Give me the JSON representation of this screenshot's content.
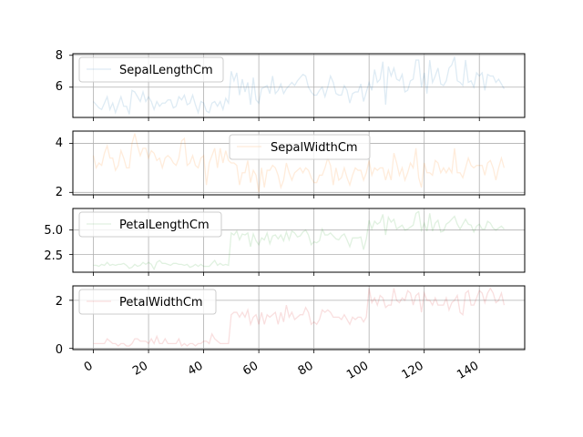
{
  "chart_data": [
    {
      "type": "line",
      "series": [
        {
          "name": "SepalLengthCm",
          "color": "#1f77b4"
        }
      ],
      "x": [
        0,
        1,
        2,
        3,
        4,
        5,
        6,
        7,
        8,
        9,
        10,
        11,
        12,
        13,
        14,
        15,
        16,
        17,
        18,
        19,
        20,
        21,
        22,
        23,
        24,
        25,
        26,
        27,
        28,
        29,
        30,
        31,
        32,
        33,
        34,
        35,
        36,
        37,
        38,
        39,
        40,
        41,
        42,
        43,
        44,
        45,
        46,
        47,
        48,
        49,
        50,
        51,
        52,
        53,
        54,
        55,
        56,
        57,
        58,
        59,
        60,
        61,
        62,
        63,
        64,
        65,
        66,
        67,
        68,
        69,
        70,
        71,
        72,
        73,
        74,
        75,
        76,
        77,
        78,
        79,
        80,
        81,
        82,
        83,
        84,
        85,
        86,
        87,
        88,
        89,
        90,
        91,
        92,
        93,
        94,
        95,
        96,
        97,
        98,
        99,
        100,
        101,
        102,
        103,
        104,
        105,
        106,
        107,
        108,
        109,
        110,
        111,
        112,
        113,
        114,
        115,
        116,
        117,
        118,
        119,
        120,
        121,
        122,
        123,
        124,
        125,
        126,
        127,
        128,
        129,
        130,
        131,
        132,
        133,
        134,
        135,
        136,
        137,
        138,
        139,
        140,
        141,
        142,
        143,
        144,
        145,
        146,
        147,
        148,
        149
      ],
      "values": [
        5.1,
        4.9,
        4.7,
        4.6,
        5.0,
        5.4,
        4.6,
        5.0,
        4.4,
        4.9,
        5.4,
        4.8,
        4.8,
        4.3,
        5.8,
        5.7,
        5.4,
        5.1,
        5.7,
        5.1,
        5.4,
        5.1,
        4.6,
        5.1,
        4.8,
        5.0,
        5.0,
        5.2,
        5.2,
        4.7,
        4.8,
        5.4,
        5.2,
        5.5,
        4.9,
        5.0,
        5.5,
        4.9,
        4.4,
        5.1,
        5.0,
        4.5,
        4.4,
        5.0,
        5.1,
        4.8,
        5.1,
        4.6,
        5.3,
        5.0,
        7.0,
        6.4,
        6.9,
        5.5,
        6.5,
        5.7,
        6.3,
        4.9,
        6.6,
        5.2,
        5.0,
        5.9,
        6.0,
        6.1,
        5.6,
        6.7,
        5.6,
        5.8,
        6.2,
        5.6,
        5.9,
        6.1,
        6.3,
        6.1,
        6.4,
        6.6,
        6.8,
        6.7,
        6.0,
        5.7,
        5.5,
        5.5,
        5.8,
        6.0,
        5.4,
        6.0,
        6.7,
        6.3,
        5.6,
        5.5,
        5.5,
        6.1,
        5.8,
        5.0,
        5.6,
        5.7,
        5.7,
        6.2,
        5.1,
        5.7,
        6.3,
        5.8,
        7.1,
        6.3,
        6.5,
        7.6,
        4.9,
        7.3,
        6.7,
        7.2,
        6.5,
        6.4,
        6.8,
        5.7,
        5.8,
        6.4,
        6.5,
        7.7,
        7.7,
        6.0,
        6.9,
        5.6,
        7.7,
        6.3,
        6.7,
        7.2,
        6.2,
        6.1,
        6.4,
        7.2,
        7.4,
        7.9,
        6.4,
        6.3,
        6.1,
        7.7,
        6.3,
        6.4,
        6.0,
        6.9,
        6.7,
        6.9,
        5.8,
        6.8,
        6.7,
        6.7,
        6.3,
        6.5,
        6.2,
        5.9
      ],
      "yticks": [
        "6",
        "8"
      ],
      "ylim": [
        4.1,
        8.1
      ]
    },
    {
      "type": "line",
      "series": [
        {
          "name": "SepalWidthCm",
          "color": "#ff7f0e"
        }
      ],
      "values": [
        3.5,
        3.0,
        3.2,
        3.1,
        3.6,
        3.9,
        3.4,
        3.4,
        2.9,
        3.1,
        3.7,
        3.4,
        3.0,
        3.0,
        4.0,
        4.4,
        3.9,
        3.5,
        3.8,
        3.8,
        3.4,
        3.7,
        3.6,
        3.3,
        3.4,
        3.0,
        3.4,
        3.5,
        3.4,
        3.2,
        3.1,
        3.4,
        4.1,
        4.2,
        3.1,
        3.2,
        3.5,
        3.1,
        3.0,
        3.4,
        3.5,
        2.3,
        3.2,
        3.5,
        3.8,
        3.0,
        3.8,
        3.2,
        3.7,
        3.3,
        3.2,
        3.2,
        3.1,
        2.3,
        2.8,
        2.8,
        3.3,
        2.4,
        2.9,
        2.7,
        2.0,
        3.0,
        2.2,
        2.9,
        2.9,
        3.1,
        3.0,
        2.7,
        2.2,
        2.5,
        3.2,
        2.8,
        2.5,
        2.8,
        2.9,
        3.0,
        2.8,
        3.0,
        2.9,
        2.6,
        2.4,
        2.4,
        2.7,
        2.7,
        3.0,
        3.4,
        3.1,
        2.3,
        3.0,
        2.5,
        2.6,
        3.0,
        2.6,
        2.3,
        2.7,
        3.0,
        2.9,
        2.9,
        2.5,
        2.8,
        3.3,
        2.7,
        3.0,
        2.9,
        3.0,
        3.0,
        2.5,
        2.9,
        2.5,
        3.6,
        3.2,
        2.7,
        3.0,
        2.5,
        2.8,
        3.2,
        3.0,
        3.8,
        2.6,
        2.2,
        3.2,
        2.8,
        2.8,
        2.7,
        3.3,
        3.2,
        2.8,
        3.0,
        2.8,
        3.0,
        2.8,
        3.8,
        2.8,
        2.8,
        2.6,
        3.0,
        3.4,
        3.1,
        3.0,
        3.1,
        3.1,
        3.1,
        2.7,
        3.2,
        3.3,
        3.0,
        2.5,
        3.0,
        3.4,
        3.0
      ],
      "yticks": [
        "2",
        "4"
      ],
      "ylim": [
        1.9,
        4.5
      ]
    },
    {
      "type": "line",
      "series": [
        {
          "name": "PetalLengthCm",
          "color": "#2ca02c"
        }
      ],
      "values": [
        1.4,
        1.4,
        1.3,
        1.5,
        1.4,
        1.7,
        1.4,
        1.5,
        1.4,
        1.5,
        1.5,
        1.6,
        1.4,
        1.1,
        1.2,
        1.5,
        1.3,
        1.4,
        1.7,
        1.5,
        1.7,
        1.5,
        1.0,
        1.7,
        1.9,
        1.6,
        1.6,
        1.5,
        1.4,
        1.6,
        1.6,
        1.5,
        1.5,
        1.4,
        1.5,
        1.2,
        1.3,
        1.5,
        1.3,
        1.5,
        1.3,
        1.3,
        1.3,
        1.6,
        1.9,
        1.4,
        1.6,
        1.4,
        1.5,
        1.4,
        4.7,
        4.5,
        4.9,
        4.0,
        4.6,
        4.5,
        4.7,
        3.3,
        4.6,
        3.9,
        3.5,
        4.2,
        4.0,
        4.7,
        3.6,
        4.4,
        4.5,
        4.1,
        4.5,
        3.9,
        4.8,
        4.0,
        4.9,
        4.7,
        4.3,
        4.4,
        4.8,
        5.0,
        4.5,
        3.5,
        3.8,
        3.7,
        3.9,
        5.1,
        4.5,
        4.5,
        4.7,
        4.4,
        4.1,
        4.0,
        4.4,
        4.6,
        4.0,
        3.3,
        4.2,
        4.2,
        4.2,
        4.3,
        3.0,
        4.1,
        6.0,
        5.1,
        5.9,
        5.6,
        5.8,
        6.6,
        4.5,
        6.3,
        5.8,
        6.1,
        5.1,
        5.3,
        5.5,
        5.0,
        5.1,
        5.3,
        5.5,
        6.7,
        6.9,
        5.0,
        5.7,
        4.9,
        6.7,
        4.9,
        5.7,
        6.0,
        4.8,
        4.9,
        5.6,
        5.8,
        6.1,
        6.4,
        5.6,
        5.1,
        5.6,
        6.1,
        5.6,
        5.5,
        4.8,
        5.4,
        5.6,
        5.1,
        5.1,
        5.9,
        5.7,
        5.2,
        5.0,
        5.2,
        5.4,
        5.1
      ],
      "yticks": [
        "2.5",
        "5.0"
      ],
      "ylim": [
        0.7,
        7.2
      ]
    },
    {
      "type": "line",
      "series": [
        {
          "name": "PetalWidthCm",
          "color": "#d62728"
        }
      ],
      "values": [
        0.2,
        0.2,
        0.2,
        0.2,
        0.2,
        0.4,
        0.3,
        0.2,
        0.2,
        0.1,
        0.2,
        0.2,
        0.1,
        0.1,
        0.2,
        0.4,
        0.4,
        0.3,
        0.3,
        0.3,
        0.2,
        0.4,
        0.2,
        0.5,
        0.2,
        0.2,
        0.4,
        0.2,
        0.2,
        0.2,
        0.2,
        0.4,
        0.1,
        0.2,
        0.1,
        0.2,
        0.2,
        0.1,
        0.2,
        0.2,
        0.3,
        0.3,
        0.2,
        0.6,
        0.4,
        0.3,
        0.2,
        0.2,
        0.2,
        0.2,
        1.4,
        1.5,
        1.5,
        1.3,
        1.5,
        1.3,
        1.6,
        1.0,
        1.3,
        1.4,
        1.0,
        1.5,
        1.0,
        1.4,
        1.3,
        1.4,
        1.5,
        1.0,
        1.5,
        1.1,
        1.8,
        1.3,
        1.5,
        1.2,
        1.3,
        1.4,
        1.4,
        1.7,
        1.5,
        1.0,
        1.1,
        1.0,
        1.2,
        1.6,
        1.5,
        1.6,
        1.5,
        1.3,
        1.3,
        1.3,
        1.2,
        1.4,
        1.2,
        1.0,
        1.3,
        1.2,
        1.3,
        1.3,
        1.1,
        1.3,
        2.5,
        1.9,
        2.1,
        1.8,
        2.2,
        2.1,
        1.7,
        1.8,
        1.8,
        2.5,
        2.0,
        1.9,
        2.1,
        2.0,
        2.4,
        2.3,
        1.8,
        2.2,
        2.3,
        1.5,
        2.3,
        2.0,
        2.0,
        1.8,
        2.1,
        1.8,
        1.8,
        1.8,
        2.1,
        1.6,
        1.9,
        2.0,
        2.2,
        1.5,
        1.4,
        2.3,
        2.4,
        1.8,
        1.8,
        2.1,
        2.4,
        2.3,
        1.9,
        2.3,
        2.5,
        2.3,
        1.9,
        2.0,
        2.3,
        1.8
      ],
      "yticks": [
        "0",
        "2"
      ],
      "ylim": [
        -0.05,
        2.6
      ]
    }
  ],
  "shared_x": {
    "xlim": [
      -7.45,
      156.45
    ],
    "xticks": [
      "0",
      "20",
      "40",
      "60",
      "80",
      "100",
      "120",
      "140"
    ],
    "grid": true
  }
}
